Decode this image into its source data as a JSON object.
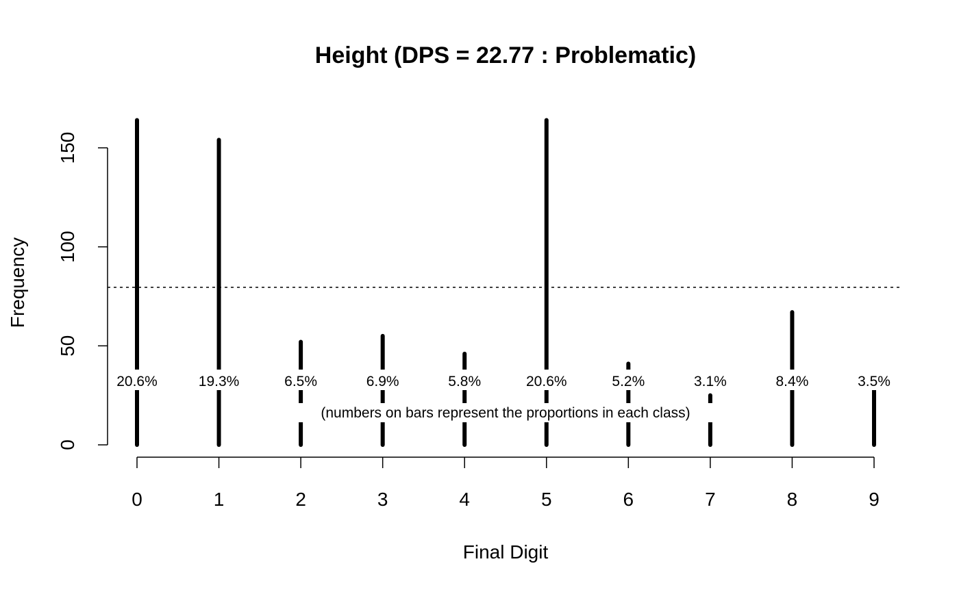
{
  "chart_data": {
    "type": "bar",
    "title": "Height (DPS = 22.77 : Problematic)",
    "xlabel": "Final Digit",
    "ylabel": "Frequency",
    "categories": [
      "0",
      "1",
      "2",
      "3",
      "4",
      "5",
      "6",
      "7",
      "8",
      "9"
    ],
    "values": [
      164,
      154,
      52,
      55,
      46,
      164,
      41,
      25,
      67,
      28
    ],
    "bar_labels": [
      "20.6%",
      "19.3%",
      "6.5%",
      "6.9%",
      "5.8%",
      "20.6%",
      "5.2%",
      "3.1%",
      "8.4%",
      "3.5%"
    ],
    "yticks": [
      0,
      50,
      100,
      150
    ],
    "ylim": [
      0,
      165
    ],
    "reference_line": 79.6,
    "note": "(numbers on bars represent the proportions in each class)",
    "grid": false,
    "bar_color": "#000000"
  }
}
